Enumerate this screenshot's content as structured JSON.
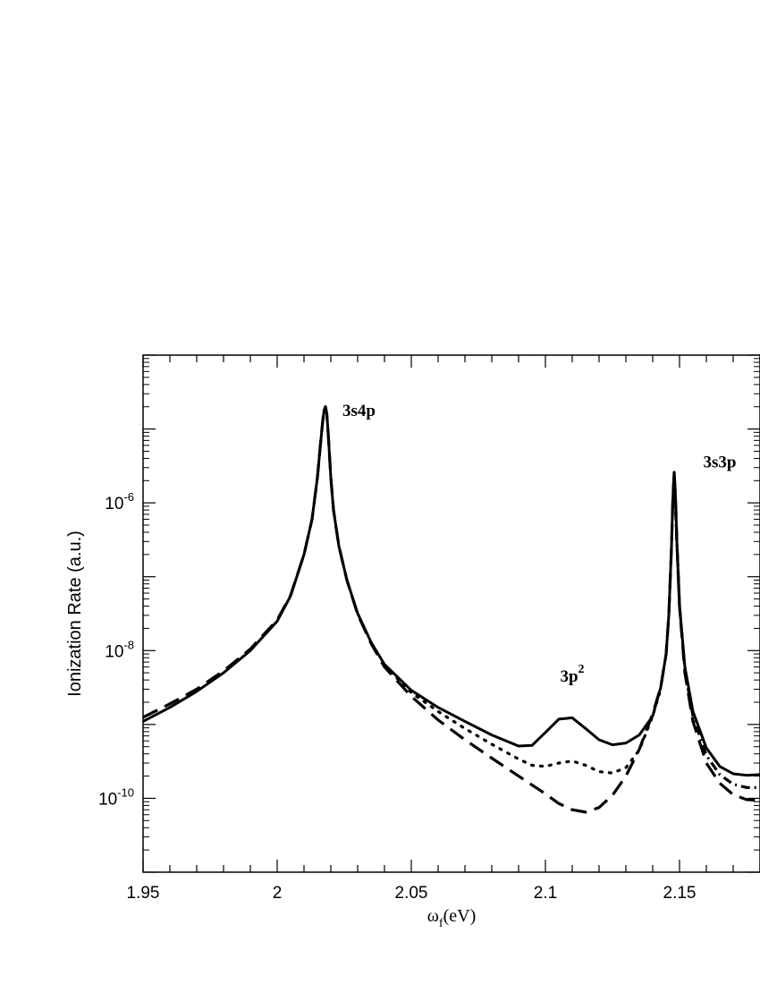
{
  "chart_data": {
    "type": "line",
    "xlabel": {
      "symbol": "ω",
      "subscript": "f",
      "unit": "(eV)"
    },
    "ylabel": "Ionization Rate (a.u.)",
    "xlim": [
      1.95,
      2.18
    ],
    "ylim": [
      1e-11,
      0.0001
    ],
    "yscale": "log",
    "grid": false,
    "x_ticks": [
      {
        "value": 1.95,
        "label": "1.95"
      },
      {
        "value": 2.0,
        "label": "2"
      },
      {
        "value": 2.05,
        "label": "2.05"
      },
      {
        "value": 2.1,
        "label": "2.1"
      },
      {
        "value": 2.15,
        "label": "2.15"
      }
    ],
    "y_ticks": [
      {
        "value": 1e-10,
        "base": "10",
        "exp": "-10"
      },
      {
        "value": 1e-08,
        "base": "10",
        "exp": "-8"
      },
      {
        "value": 1e-06,
        "base": "10",
        "exp": "-6"
      }
    ],
    "annotations": [
      {
        "text": "3s4p",
        "x": 2.0305,
        "y": 1.5e-05
      },
      {
        "text": "3s3p",
        "x": 2.165,
        "y": 3e-06
      },
      {
        "text": "3p",
        "sup": "2",
        "x": 2.11,
        "y": 3.8e-09
      }
    ],
    "series": [
      {
        "style": "solid",
        "x": [
          1.95,
          1.96,
          1.97,
          1.98,
          1.99,
          2.0,
          2.005,
          2.01,
          2.013,
          2.015,
          2.016,
          2.017,
          2.0175,
          2.018,
          2.0185,
          2.019,
          2.02,
          2.021,
          2.023,
          2.026,
          2.03,
          2.035,
          2.04,
          2.05,
          2.06,
          2.07,
          2.08,
          2.09,
          2.095,
          2.1,
          2.105,
          2.11,
          2.115,
          2.12,
          2.125,
          2.13,
          2.135,
          2.14,
          2.143,
          2.145,
          2.146,
          2.147,
          2.1475,
          2.148,
          2.1485,
          2.149,
          2.15,
          2.152,
          2.155,
          2.16,
          2.165,
          2.17,
          2.175,
          2.18
        ],
        "y": [
          1.1e-09,
          1.7e-09,
          2.8e-09,
          5e-09,
          1e-08,
          2.5e-08,
          5.5e-08,
          2e-07,
          6e-07,
          2.2e-06,
          5.5e-06,
          1.3e-05,
          1.8e-05,
          2e-05,
          1.6e-05,
          9e-06,
          2.2e-06,
          8e-07,
          2.6e-07,
          9e-08,
          3.2e-08,
          1.3e-08,
          6.5e-09,
          2.9e-09,
          1.7e-09,
          1.1e-09,
          7.2e-10,
          5.1e-10,
          5.2e-10,
          7.8e-10,
          1.18e-09,
          1.23e-09,
          8.8e-10,
          6.2e-10,
          5.3e-10,
          5.6e-10,
          7.2e-10,
          1.3e-09,
          3.2e-09,
          9e-09,
          3e-08,
          2.5e-07,
          1.1e-06,
          2.6e-06,
          1.2e-06,
          3e-07,
          4e-08,
          6e-09,
          1.5e-09,
          4.8e-10,
          2.7e-10,
          2.15e-10,
          2.05e-10,
          2.1e-10
        ]
      },
      {
        "style": "dotted",
        "x": [
          2.04,
          2.05,
          2.06,
          2.07,
          2.08,
          2.09,
          2.095,
          2.1,
          2.105,
          2.11,
          2.115,
          2.12,
          2.125,
          2.13,
          2.135,
          2.14,
          2.143
        ],
        "y": [
          6.3e-09,
          2.7e-09,
          1.5e-09,
          8.8e-10,
          5.4e-10,
          3.4e-10,
          2.8e-10,
          2.7e-10,
          3e-10,
          3.2e-10,
          2.8e-10,
          2.3e-10,
          2.2e-10,
          2.6e-10,
          4.5e-10,
          1.3e-09,
          3e-09
        ]
      },
      {
        "style": "dashed",
        "x": [
          1.95,
          1.96,
          1.97,
          1.98,
          1.99,
          2.0,
          2.005,
          2.01,
          2.013,
          2.015,
          2.016,
          2.017,
          2.0175,
          2.018,
          2.0185,
          2.019,
          2.02,
          2.021,
          2.023,
          2.026,
          2.03,
          2.035,
          2.04,
          2.05,
          2.06,
          2.07,
          2.08,
          2.09,
          2.1,
          2.105,
          2.11,
          2.115,
          2.12,
          2.125,
          2.13,
          2.135,
          2.14,
          2.143,
          2.145,
          2.146,
          2.147,
          2.1475,
          2.148,
          2.1485,
          2.149,
          2.15,
          2.152,
          2.155,
          2.16,
          2.165,
          2.17,
          2.175,
          2.18
        ],
        "y": [
          1.25e-09,
          1.9e-09,
          3e-09,
          5.3e-09,
          1.05e-08,
          2.6e-08,
          5.6e-08,
          2e-07,
          6e-07,
          2.2e-06,
          5.5e-06,
          1.3e-05,
          1.8e-05,
          2e-05,
          1.6e-05,
          9e-06,
          2.2e-06,
          8e-07,
          2.6e-07,
          9e-08,
          3.1e-08,
          1.25e-08,
          6e-09,
          2.4e-09,
          1.15e-09,
          6.2e-10,
          3.5e-10,
          2e-10,
          1.15e-10,
          8.5e-11,
          7e-11,
          6.5e-11,
          7.5e-11,
          1.1e-10,
          2e-10,
          4.6e-10,
          1.4e-09,
          3.2e-09,
          9e-09,
          3e-08,
          2.5e-07,
          1.1e-06,
          2.6e-06,
          1.2e-06,
          3e-07,
          4e-08,
          5e-09,
          1.1e-09,
          3e-10,
          1.6e-10,
          1.12e-10,
          9.6e-11,
          9.4e-11
        ]
      },
      {
        "style": "dashdot",
        "x": [
          2.148,
          2.149,
          2.15,
          2.152,
          2.155,
          2.16,
          2.165,
          2.17,
          2.175,
          2.18
        ],
        "y": [
          2.6e-06,
          3e-07,
          4e-08,
          5.5e-09,
          1.3e-09,
          3.8e-10,
          2.1e-10,
          1.55e-10,
          1.4e-10,
          1.4e-10
        ]
      }
    ]
  }
}
